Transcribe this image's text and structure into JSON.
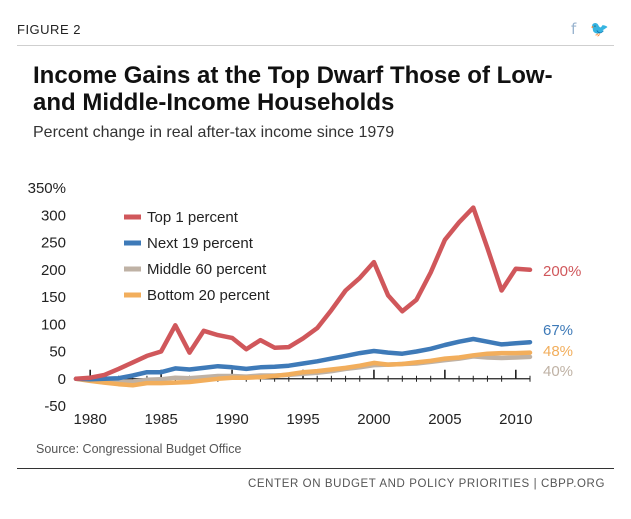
{
  "header": {
    "figure_label": "FIGURE 2",
    "social_icons": [
      {
        "icon": "facebook-icon",
        "glyph": "f"
      },
      {
        "icon": "twitter-icon",
        "glyph": "🐦"
      }
    ]
  },
  "title": "Income Gains at the Top Dwarf Those of Low- and Middle-Income Households",
  "subtitle": "Percent change in real after-tax income since 1979",
  "source": "Source: Congressional Budget Office",
  "footer": "CENTER ON BUDGET AND POLICY PRIORITIES | CBPP.ORG",
  "chart_data": {
    "type": "line",
    "title": "Income Gains at the Top Dwarf Those of Low- and Middle-Income Households",
    "subtitle": "Percent change in real after-tax income since 1979",
    "xlabel": "",
    "ylabel": "",
    "xlim": [
      1979,
      2011
    ],
    "ylim": [
      -50,
      350
    ],
    "yticks": [
      "350%",
      "300",
      "250",
      "200",
      "150",
      "100",
      "50",
      "0",
      "-50"
    ],
    "ytick_values": [
      350,
      300,
      250,
      200,
      150,
      100,
      50,
      0,
      -50
    ],
    "xticks": [
      "1980",
      "1985",
      "1990",
      "1995",
      "2000",
      "2005",
      "2010"
    ],
    "xtick_values": [
      1980,
      1985,
      1990,
      1995,
      2000,
      2005,
      2010
    ],
    "legend_position": "top-left",
    "grid": false,
    "x": [
      1979,
      1980,
      1981,
      1982,
      1983,
      1984,
      1985,
      1986,
      1987,
      1988,
      1989,
      1990,
      1991,
      1992,
      1993,
      1994,
      1995,
      1996,
      1997,
      1998,
      1999,
      2000,
      2001,
      2002,
      2003,
      2004,
      2005,
      2006,
      2007,
      2008,
      2009,
      2010,
      2011
    ],
    "series": [
      {
        "name": "Top 1 percent",
        "color": "#d0575b",
        "values": [
          0,
          2,
          7,
          18,
          30,
          42,
          50,
          98,
          48,
          88,
          80,
          75,
          54,
          71,
          57,
          58,
          74,
          93,
          126,
          162,
          185,
          214,
          153,
          124,
          145,
          195,
          255,
          287,
          314,
          240,
          162,
          202,
          200
        ],
        "end_label": "200%"
      },
      {
        "name": "Next 19 percent",
        "color": "#3e7ab8",
        "values": [
          0,
          -1,
          0,
          1,
          6,
          12,
          12,
          19,
          17,
          20,
          23,
          21,
          18,
          21,
          22,
          24,
          28,
          32,
          37,
          42,
          47,
          51,
          48,
          46,
          50,
          55,
          62,
          68,
          73,
          68,
          63,
          65,
          67
        ],
        "end_label": "67%"
      },
      {
        "name": "Middle 60 percent",
        "color": "#bfb2a5",
        "values": [
          0,
          -2,
          -4,
          -6,
          -5,
          -2,
          -1,
          2,
          1,
          3,
          5,
          5,
          4,
          6,
          6,
          7,
          9,
          11,
          14,
          18,
          21,
          25,
          26,
          27,
          28,
          31,
          34,
          37,
          41,
          39,
          38,
          39,
          40
        ],
        "end_label": "40%"
      },
      {
        "name": "Bottom 20 percent",
        "color": "#f2ae5c",
        "values": [
          0,
          -4,
          -7,
          -10,
          -12,
          -8,
          -8,
          -7,
          -6,
          -3,
          0,
          2,
          2,
          3,
          5,
          8,
          12,
          14,
          17,
          20,
          24,
          29,
          26,
          27,
          30,
          33,
          37,
          39,
          43,
          46,
          47,
          47,
          48
        ],
        "end_label": "48%"
      }
    ]
  }
}
